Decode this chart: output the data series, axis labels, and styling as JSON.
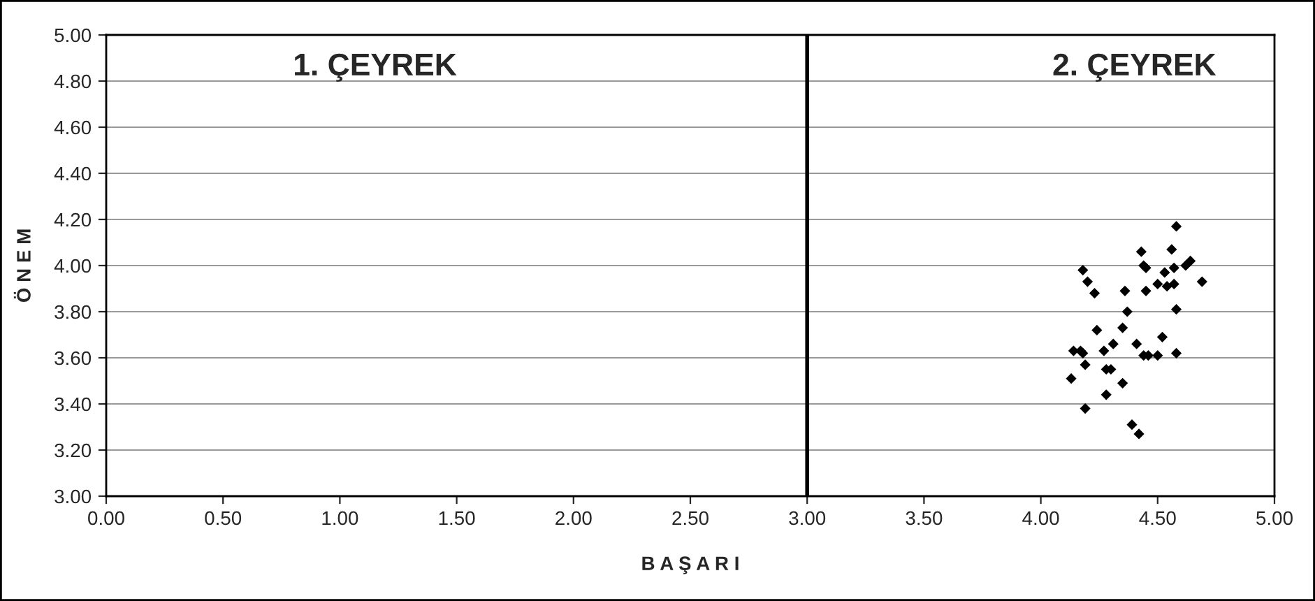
{
  "chart_data": {
    "type": "scatter",
    "xlabel": "B A Ş A R I",
    "ylabel": "Ö N E M",
    "annotations": [
      "1. ÇEYREK",
      "2. ÇEYREK"
    ],
    "x": [
      4.58,
      4.43,
      4.56,
      4.44,
      4.45,
      4.18,
      4.53,
      4.57,
      4.62,
      4.64,
      4.2,
      4.5,
      4.54,
      4.57,
      4.69,
      4.23,
      4.36,
      4.45,
      4.37,
      4.58,
      4.24,
      4.35,
      4.52,
      4.14,
      4.17,
      4.18,
      4.27,
      4.31,
      4.41,
      4.44,
      4.46,
      4.5,
      4.58,
      4.19,
      4.28,
      4.3,
      4.13,
      4.35,
      4.28,
      4.19,
      4.39,
      4.42
    ],
    "series": [
      {
        "color": "#000000",
        "values": [
          4.17,
          4.06,
          4.07,
          4.0,
          3.99,
          3.98,
          3.97,
          3.99,
          4.0,
          4.02,
          3.93,
          3.92,
          3.91,
          3.92,
          3.93,
          3.88,
          3.89,
          3.89,
          3.8,
          3.81,
          3.72,
          3.73,
          3.69,
          3.63,
          3.63,
          3.62,
          3.63,
          3.66,
          3.66,
          3.61,
          3.61,
          3.61,
          3.62,
          3.57,
          3.55,
          3.55,
          3.51,
          3.49,
          3.44,
          3.38,
          3.31,
          3.27
        ]
      }
    ],
    "xlim": [
      0,
      5
    ],
    "ylim": [
      3,
      5
    ],
    "xticks": [
      {
        "value": 0,
        "label": "0.00"
      },
      {
        "value": 0.5,
        "label": "0.50"
      },
      {
        "value": 1,
        "label": "1.00"
      },
      {
        "value": 1.5,
        "label": "1.50"
      },
      {
        "value": 2,
        "label": "2.00"
      },
      {
        "value": 2.5,
        "label": "2.50"
      },
      {
        "value": 3,
        "label": "3.00"
      },
      {
        "value": 3.5,
        "label": "3.50"
      },
      {
        "value": 4,
        "label": "4.00"
      },
      {
        "value": 4.5,
        "label": "4.50"
      },
      {
        "value": 5,
        "label": "5.00"
      }
    ],
    "yticks": [
      {
        "value": 3,
        "label": "3.00"
      },
      {
        "value": 3.2,
        "label": "3.20"
      },
      {
        "value": 3.4,
        "label": "3.40"
      },
      {
        "value": 3.6,
        "label": "3.60"
      },
      {
        "value": 3.8,
        "label": "3.80"
      },
      {
        "value": 4,
        "label": "4.00"
      },
      {
        "value": 4.2,
        "label": "4.20"
      },
      {
        "value": 4.4,
        "label": "4.40"
      },
      {
        "value": 4.6,
        "label": "4.60"
      },
      {
        "value": 4.8,
        "label": "4.80"
      },
      {
        "value": 5,
        "label": "5.00"
      }
    ],
    "ref_lines": [
      {
        "axis": "x",
        "value": 3,
        "color": "#000000"
      }
    ],
    "grid": "y",
    "marker": "diamond",
    "legend": false
  }
}
